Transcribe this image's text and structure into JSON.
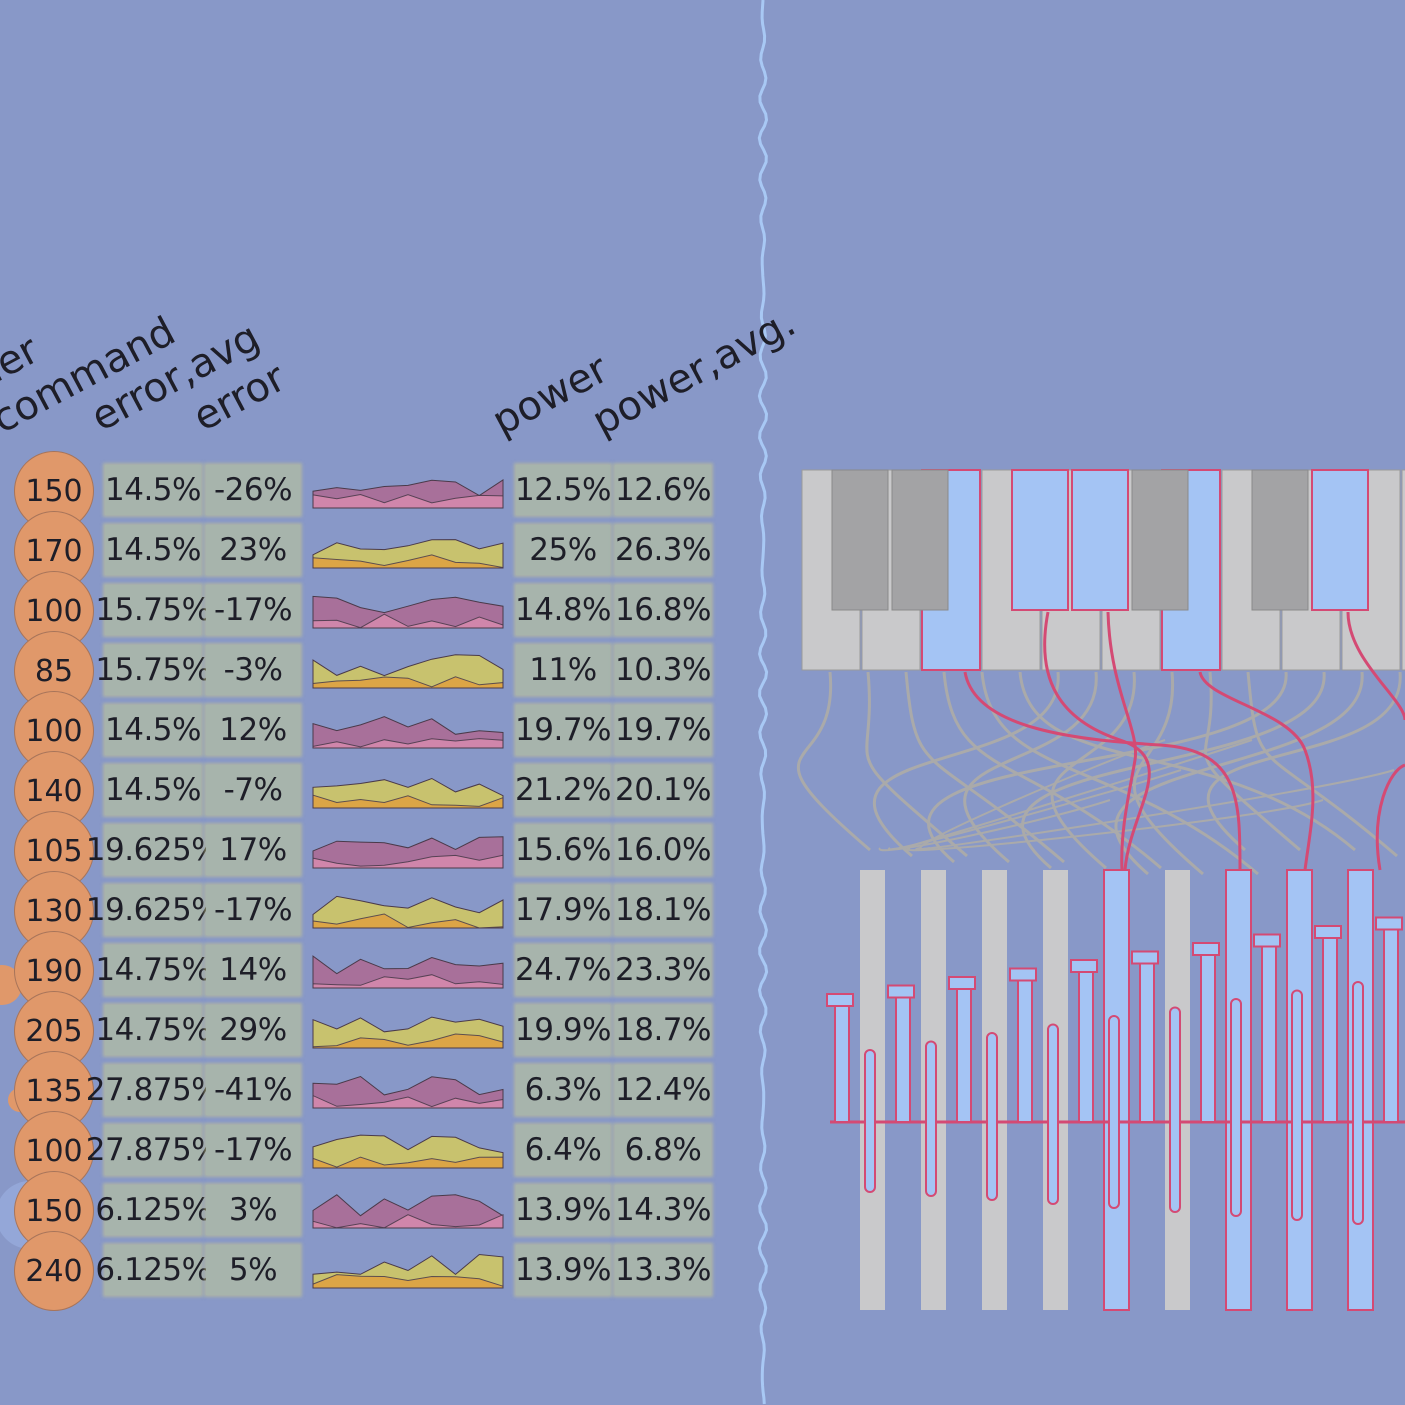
{
  "headers": {
    "order": "der",
    "command": "command",
    "error_avg": "error,avg",
    "error": "error",
    "power": "power",
    "power_avg": "power,avg."
  },
  "rows": [
    {
      "command": "150",
      "error_avg": "14.5%",
      "error": "-26%",
      "power": "12.5%",
      "power_avg": "12.6%",
      "spark": "purple"
    },
    {
      "command": "170",
      "error_avg": "14.5%",
      "error": "23%",
      "power": "25%",
      "power_avg": "26.3%",
      "spark": "yellow"
    },
    {
      "command": "100",
      "error_avg": "15.75%",
      "error": "-17%",
      "power": "14.8%",
      "power_avg": "16.8%",
      "spark": "purple"
    },
    {
      "command": "85",
      "error_avg": "15.75%",
      "error": "-3%",
      "power": "11%",
      "power_avg": "10.3%",
      "spark": "yellow"
    },
    {
      "command": "100",
      "error_avg": "14.5%",
      "error": "12%",
      "power": "19.7%",
      "power_avg": "19.7%",
      "spark": "purple"
    },
    {
      "command": "140",
      "error_avg": "14.5%",
      "error": "-7%",
      "power": "21.2%",
      "power_avg": "20.1%",
      "spark": "yellow"
    },
    {
      "command": "105",
      "error_avg": "19.625%",
      "error": "17%",
      "power": "15.6%",
      "power_avg": "16.0%",
      "spark": "purple"
    },
    {
      "command": "130",
      "error_avg": "19.625%",
      "error": "-17%",
      "power": "17.9%",
      "power_avg": "18.1%",
      "spark": "yellow"
    },
    {
      "command": "190",
      "error_avg": "14.75%",
      "error": "14%",
      "power": "24.7%",
      "power_avg": "23.3%",
      "spark": "purple"
    },
    {
      "command": "205",
      "error_avg": "14.75%",
      "error": "29%",
      "power": "19.9%",
      "power_avg": "18.7%",
      "spark": "yellow"
    },
    {
      "command": "135",
      "error_avg": "27.875%",
      "error": "-41%",
      "power": "6.3%",
      "power_avg": "12.4%",
      "spark": "purple"
    },
    {
      "command": "100",
      "error_avg": "27.875%",
      "error": "-17%",
      "power": "6.4%",
      "power_avg": "6.8%",
      "spark": "yellow"
    },
    {
      "command": "150",
      "error_avg": "6.125%",
      "error": "3%",
      "power": "13.9%",
      "power_avg": "14.3%",
      "spark": "purple"
    },
    {
      "command": "240",
      "error_avg": "6.125%",
      "error": "5%",
      "power": "13.9%",
      "power_avg": "13.3%",
      "spark": "yellow"
    }
  ],
  "colors": {
    "background": "#8898c8",
    "cell": "#a7b4ac",
    "command_circle": "#e0986a",
    "purple_series": "#a8709a",
    "pink_series": "#d88aae",
    "yellow_series": "#c8c26e",
    "orange_series": "#e0a040",
    "key_white": "#c9c9cb",
    "key_black": "#a3a3a5",
    "key_active": "#a4c4f4",
    "wire_active": "#d44a74",
    "wire_idle": "#aaaaaa",
    "divider": "#a8c8f4"
  },
  "icons": {
    "command_marker": "circle",
    "keyboard": "piano-keys",
    "hammers": "hammer-action"
  }
}
